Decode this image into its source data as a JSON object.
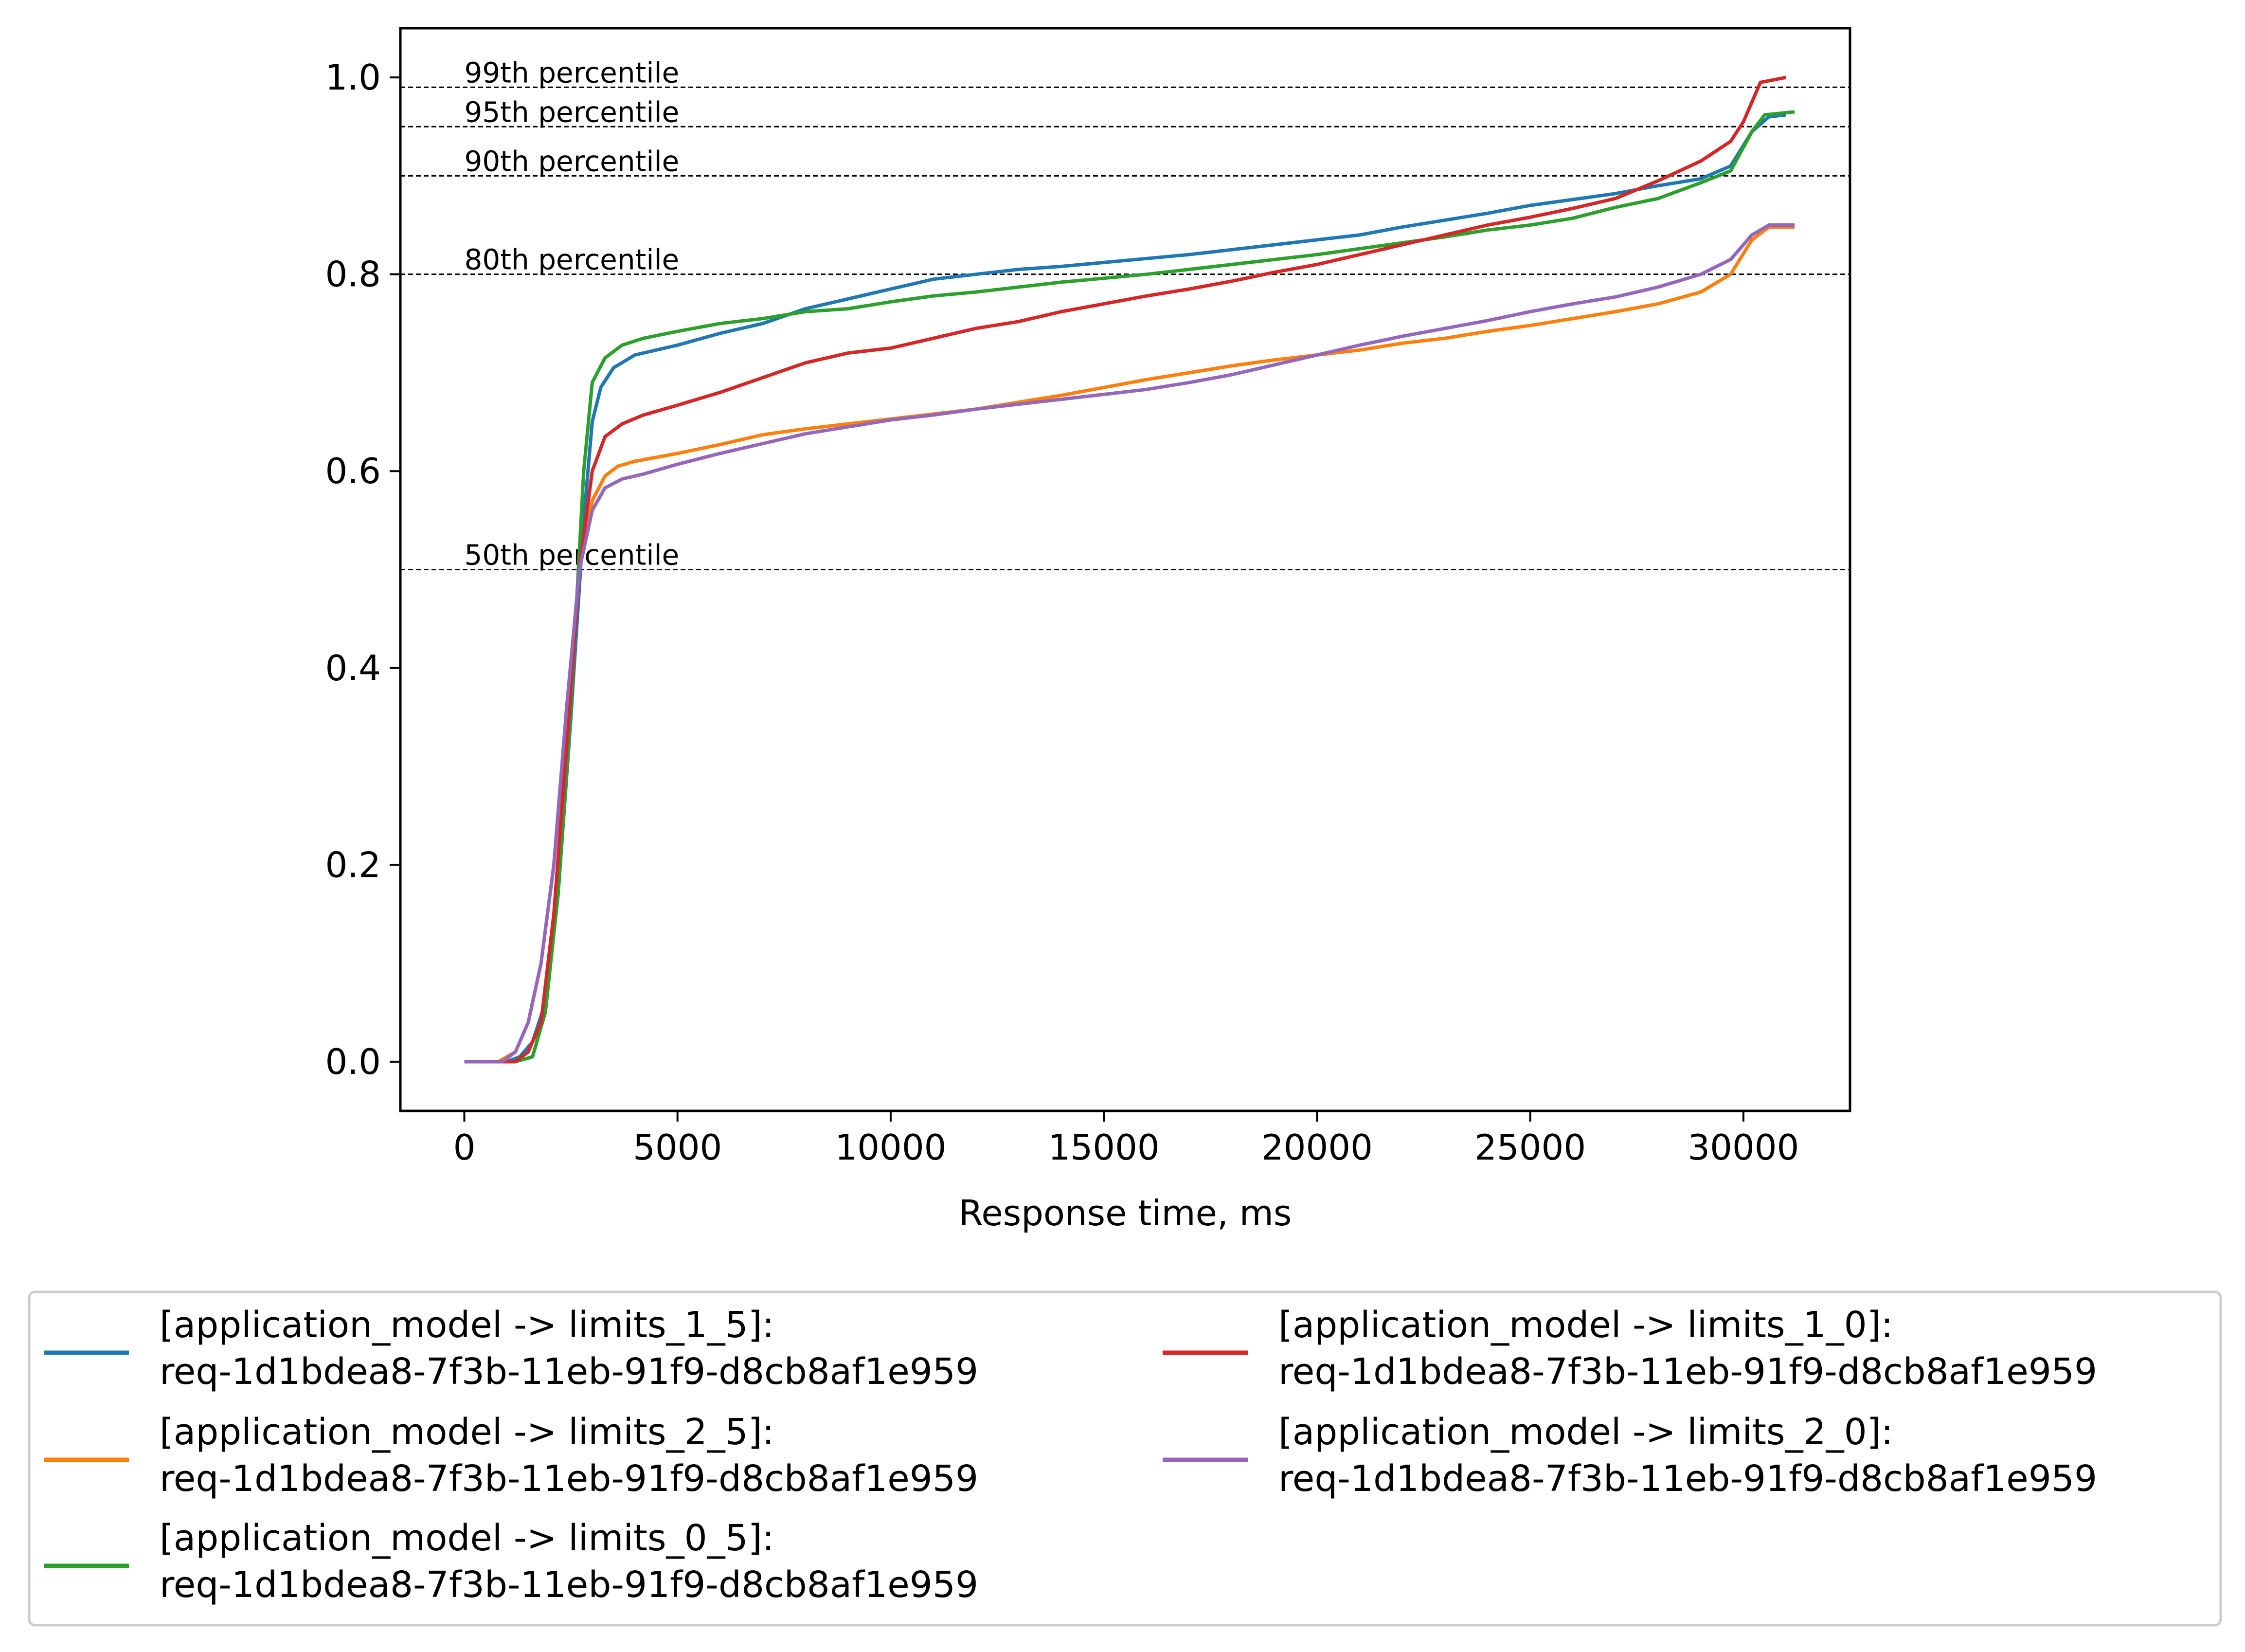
{
  "chart_data": {
    "type": "line",
    "title": "",
    "xlabel": "Response time, ms",
    "ylabel": "",
    "xlim": [
      -1500,
      32500
    ],
    "ylim": [
      -0.05,
      1.05
    ],
    "xticks": [
      0,
      5000,
      10000,
      15000,
      20000,
      25000,
      30000
    ],
    "xtick_labels": [
      "0",
      "5000",
      "10000",
      "15000",
      "20000",
      "25000",
      "30000"
    ],
    "yticks": [
      0.0,
      0.2,
      0.4,
      0.6,
      0.8,
      1.0
    ],
    "ytick_labels": [
      "0.0",
      "0.2",
      "0.4",
      "0.6",
      "0.8",
      "1.0"
    ],
    "grid": false,
    "legend_position": "below",
    "percentile_lines": [
      {
        "label": "99th percentile",
        "y": 0.99
      },
      {
        "label": "95th percentile",
        "y": 0.95
      },
      {
        "label": "90th percentile",
        "y": 0.9
      },
      {
        "label": "80th percentile",
        "y": 0.8
      },
      {
        "label": "50th percentile",
        "y": 0.5
      }
    ],
    "series": [
      {
        "name_line1": "[application_model -> limits_1_5]:",
        "name_line2": "req-1d1bdea8-7f3b-11eb-91f9-d8cb8af1e959",
        "color": "#1f77b4",
        "points": [
          [
            0,
            0
          ],
          [
            1000,
            0
          ],
          [
            1300,
            0.005
          ],
          [
            1600,
            0.02
          ],
          [
            1900,
            0.06
          ],
          [
            2200,
            0.17
          ],
          [
            2500,
            0.35
          ],
          [
            2800,
            0.55
          ],
          [
            3000,
            0.65
          ],
          [
            3200,
            0.685
          ],
          [
            3500,
            0.705
          ],
          [
            4000,
            0.718
          ],
          [
            5000,
            0.728
          ],
          [
            6000,
            0.74
          ],
          [
            7000,
            0.75
          ],
          [
            8000,
            0.765
          ],
          [
            9000,
            0.775
          ],
          [
            10000,
            0.785
          ],
          [
            11000,
            0.795
          ],
          [
            12000,
            0.8
          ],
          [
            13000,
            0.805
          ],
          [
            14000,
            0.808
          ],
          [
            15000,
            0.812
          ],
          [
            16000,
            0.816
          ],
          [
            17000,
            0.82
          ],
          [
            18000,
            0.825
          ],
          [
            19000,
            0.83
          ],
          [
            20000,
            0.835
          ],
          [
            21000,
            0.84
          ],
          [
            22000,
            0.848
          ],
          [
            23000,
            0.855
          ],
          [
            24000,
            0.862
          ],
          [
            25000,
            0.87
          ],
          [
            26000,
            0.876
          ],
          [
            27000,
            0.882
          ],
          [
            28000,
            0.89
          ],
          [
            29000,
            0.897
          ],
          [
            29700,
            0.91
          ],
          [
            30200,
            0.945
          ],
          [
            30600,
            0.96
          ],
          [
            31000,
            0.962
          ]
        ]
      },
      {
        "name_line1": "[application_model -> limits_2_5]:",
        "name_line2": "req-1d1bdea8-7f3b-11eb-91f9-d8cb8af1e959",
        "color": "#ff7f0e",
        "points": [
          [
            0,
            0
          ],
          [
            800,
            0
          ],
          [
            1200,
            0.01
          ],
          [
            1500,
            0.04
          ],
          [
            1800,
            0.1
          ],
          [
            2100,
            0.2
          ],
          [
            2400,
            0.35
          ],
          [
            2700,
            0.5
          ],
          [
            3000,
            0.57
          ],
          [
            3300,
            0.595
          ],
          [
            3600,
            0.605
          ],
          [
            4000,
            0.61
          ],
          [
            5000,
            0.618
          ],
          [
            6000,
            0.627
          ],
          [
            7000,
            0.637
          ],
          [
            8000,
            0.643
          ],
          [
            9000,
            0.648
          ],
          [
            10000,
            0.653
          ],
          [
            11000,
            0.658
          ],
          [
            12000,
            0.663
          ],
          [
            13000,
            0.67
          ],
          [
            14000,
            0.677
          ],
          [
            15000,
            0.685
          ],
          [
            16000,
            0.693
          ],
          [
            17000,
            0.7
          ],
          [
            18000,
            0.707
          ],
          [
            19000,
            0.713
          ],
          [
            20000,
            0.718
          ],
          [
            21000,
            0.723
          ],
          [
            22000,
            0.73
          ],
          [
            23000,
            0.735
          ],
          [
            24000,
            0.742
          ],
          [
            25000,
            0.748
          ],
          [
            26000,
            0.755
          ],
          [
            27000,
            0.762
          ],
          [
            28000,
            0.77
          ],
          [
            29000,
            0.782
          ],
          [
            29700,
            0.8
          ],
          [
            30200,
            0.835
          ],
          [
            30600,
            0.848
          ],
          [
            31200,
            0.848
          ]
        ]
      },
      {
        "name_line1": "[application_model -> limits_0_5]:",
        "name_line2": "req-1d1bdea8-7f3b-11eb-91f9-d8cb8af1e959",
        "color": "#2ca02c",
        "points": [
          [
            0,
            0
          ],
          [
            1200,
            0
          ],
          [
            1600,
            0.005
          ],
          [
            1900,
            0.05
          ],
          [
            2200,
            0.17
          ],
          [
            2500,
            0.36
          ],
          [
            2800,
            0.6
          ],
          [
            3000,
            0.69
          ],
          [
            3300,
            0.715
          ],
          [
            3700,
            0.728
          ],
          [
            4200,
            0.735
          ],
          [
            5000,
            0.742
          ],
          [
            6000,
            0.75
          ],
          [
            7000,
            0.755
          ],
          [
            8000,
            0.762
          ],
          [
            9000,
            0.765
          ],
          [
            10000,
            0.772
          ],
          [
            11000,
            0.778
          ],
          [
            12000,
            0.782
          ],
          [
            13000,
            0.787
          ],
          [
            14000,
            0.792
          ],
          [
            15000,
            0.796
          ],
          [
            16000,
            0.8
          ],
          [
            17000,
            0.805
          ],
          [
            18000,
            0.81
          ],
          [
            19000,
            0.815
          ],
          [
            20000,
            0.82
          ],
          [
            21000,
            0.826
          ],
          [
            22000,
            0.832
          ],
          [
            23000,
            0.838
          ],
          [
            24000,
            0.845
          ],
          [
            25000,
            0.85
          ],
          [
            26000,
            0.857
          ],
          [
            27000,
            0.868
          ],
          [
            28000,
            0.877
          ],
          [
            29000,
            0.893
          ],
          [
            29700,
            0.905
          ],
          [
            30200,
            0.945
          ],
          [
            30500,
            0.962
          ],
          [
            31200,
            0.965
          ]
        ]
      },
      {
        "name_line1": "[application_model -> limits_1_0]:",
        "name_line2": "req-1d1bdea8-7f3b-11eb-91f9-d8cb8af1e959",
        "color": "#d62728",
        "points": [
          [
            0,
            0
          ],
          [
            1200,
            0
          ],
          [
            1500,
            0.01
          ],
          [
            1800,
            0.04
          ],
          [
            2100,
            0.15
          ],
          [
            2400,
            0.32
          ],
          [
            2700,
            0.5
          ],
          [
            3000,
            0.6
          ],
          [
            3300,
            0.635
          ],
          [
            3700,
            0.648
          ],
          [
            4200,
            0.657
          ],
          [
            5000,
            0.667
          ],
          [
            6000,
            0.68
          ],
          [
            7000,
            0.695
          ],
          [
            8000,
            0.71
          ],
          [
            9000,
            0.72
          ],
          [
            10000,
            0.725
          ],
          [
            11000,
            0.735
          ],
          [
            12000,
            0.745
          ],
          [
            13000,
            0.752
          ],
          [
            14000,
            0.762
          ],
          [
            15000,
            0.77
          ],
          [
            16000,
            0.778
          ],
          [
            17000,
            0.785
          ],
          [
            18000,
            0.793
          ],
          [
            19000,
            0.802
          ],
          [
            20000,
            0.81
          ],
          [
            21000,
            0.82
          ],
          [
            22000,
            0.83
          ],
          [
            23000,
            0.84
          ],
          [
            24000,
            0.85
          ],
          [
            25000,
            0.858
          ],
          [
            26000,
            0.867
          ],
          [
            27000,
            0.877
          ],
          [
            28000,
            0.895
          ],
          [
            29000,
            0.915
          ],
          [
            29700,
            0.935
          ],
          [
            30000,
            0.955
          ],
          [
            30400,
            0.995
          ],
          [
            31000,
            1.0
          ]
        ]
      },
      {
        "name_line1": "[application_model -> limits_2_0]:",
        "name_line2": "req-1d1bdea8-7f3b-11eb-91f9-d8cb8af1e959",
        "color": "#9467bd",
        "points": [
          [
            0,
            0
          ],
          [
            900,
            0
          ],
          [
            1200,
            0.01
          ],
          [
            1500,
            0.04
          ],
          [
            1800,
            0.1
          ],
          [
            2100,
            0.2
          ],
          [
            2400,
            0.36
          ],
          [
            2700,
            0.5
          ],
          [
            3000,
            0.56
          ],
          [
            3300,
            0.583
          ],
          [
            3700,
            0.592
          ],
          [
            4200,
            0.597
          ],
          [
            5000,
            0.607
          ],
          [
            6000,
            0.618
          ],
          [
            7000,
            0.628
          ],
          [
            8000,
            0.638
          ],
          [
            9000,
            0.645
          ],
          [
            10000,
            0.652
          ],
          [
            11000,
            0.657
          ],
          [
            12000,
            0.663
          ],
          [
            13000,
            0.668
          ],
          [
            14000,
            0.673
          ],
          [
            15000,
            0.678
          ],
          [
            16000,
            0.683
          ],
          [
            17000,
            0.69
          ],
          [
            18000,
            0.698
          ],
          [
            19000,
            0.708
          ],
          [
            20000,
            0.718
          ],
          [
            21000,
            0.728
          ],
          [
            22000,
            0.737
          ],
          [
            23000,
            0.745
          ],
          [
            24000,
            0.753
          ],
          [
            25000,
            0.762
          ],
          [
            26000,
            0.77
          ],
          [
            27000,
            0.777
          ],
          [
            28000,
            0.787
          ],
          [
            29000,
            0.8
          ],
          [
            29700,
            0.815
          ],
          [
            30200,
            0.84
          ],
          [
            30600,
            0.85
          ],
          [
            31200,
            0.85
          ]
        ]
      }
    ]
  }
}
